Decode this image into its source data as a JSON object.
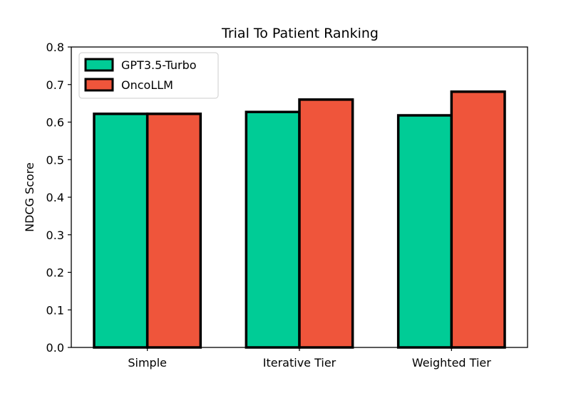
{
  "chart_data": {
    "type": "bar",
    "title": "Trial To Patient Ranking",
    "xlabel": "",
    "ylabel": "NDCG Score",
    "categories": [
      "Simple",
      "Iterative Tier",
      "Weighted Tier"
    ],
    "series": [
      {
        "name": "GPT3.5-Turbo",
        "color": "#00cc96",
        "values": [
          0.622,
          0.627,
          0.618
        ]
      },
      {
        "name": "OncoLLM",
        "color": "#ef553b",
        "values": [
          0.622,
          0.66,
          0.681
        ]
      }
    ],
    "ylim": [
      0.0,
      0.8
    ],
    "yticks": [
      "0.0",
      "0.1",
      "0.2",
      "0.3",
      "0.4",
      "0.5",
      "0.6",
      "0.7",
      "0.8"
    ],
    "grid": false,
    "legend_position": "top-left",
    "bar_edge_color": "#000000"
  }
}
